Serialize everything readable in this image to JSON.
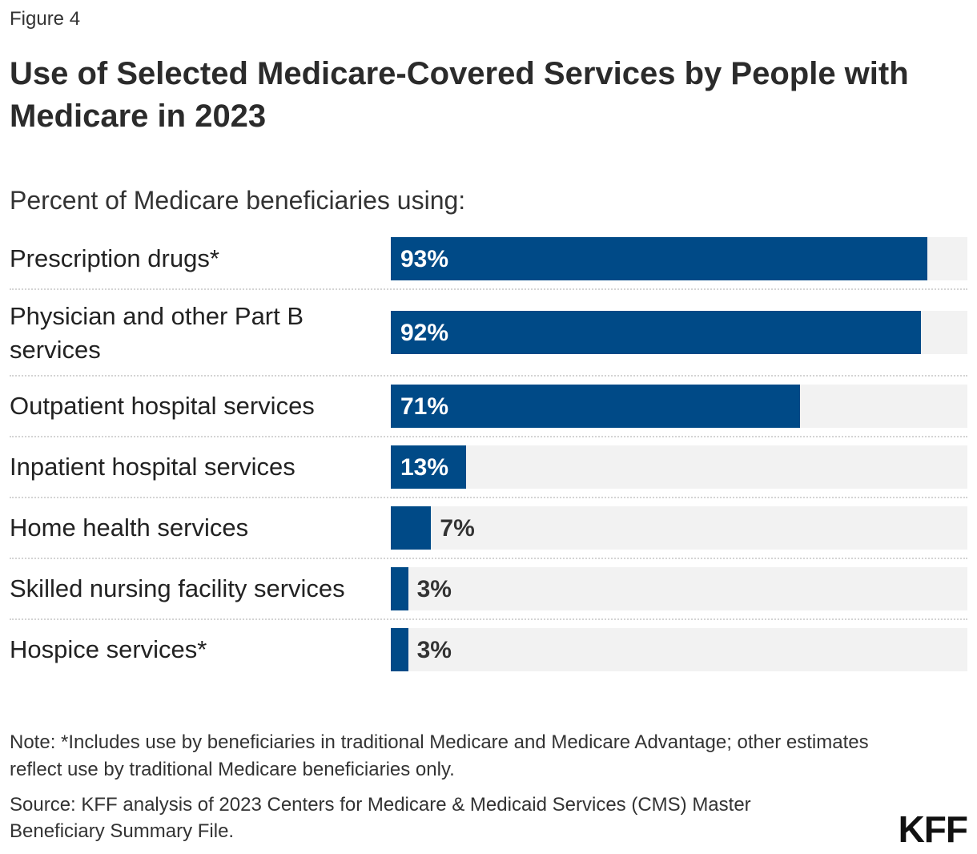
{
  "figure_label": "Figure 4",
  "logo": "KFF",
  "colors": {
    "bar": "#004a87",
    "track": "#f2f2f2",
    "label_inside": "#ffffff",
    "label_outside": "#333333"
  },
  "chart_data": {
    "type": "bar",
    "orientation": "horizontal",
    "title": "Use of Selected Medicare-Covered Services by People with Medicare in 2023",
    "subtitle": "Percent of Medicare beneficiaries using:",
    "categories": [
      "Prescription drugs*",
      "Physician and other Part B services",
      "Outpatient hospital services",
      "Inpatient hospital services",
      "Home health services",
      "Skilled nursing facility services",
      "Hospice services*"
    ],
    "values": [
      93,
      92,
      71,
      13,
      7,
      3,
      3
    ],
    "data_labels": [
      "93%",
      "92%",
      "71%",
      "13%",
      "7%",
      "3%",
      "3%"
    ],
    "xlim": [
      0,
      100
    ],
    "unit": "%",
    "grid": false,
    "legend": "none"
  },
  "note": "Note: *Includes use by beneficiaries in traditional Medicare and Medicare Advantage; other estimates reflect use by traditional Medicare beneficiaries only.",
  "source": "Source: KFF analysis of 2023 Centers for Medicare & Medicaid Services (CMS) Master Beneficiary Summary File."
}
